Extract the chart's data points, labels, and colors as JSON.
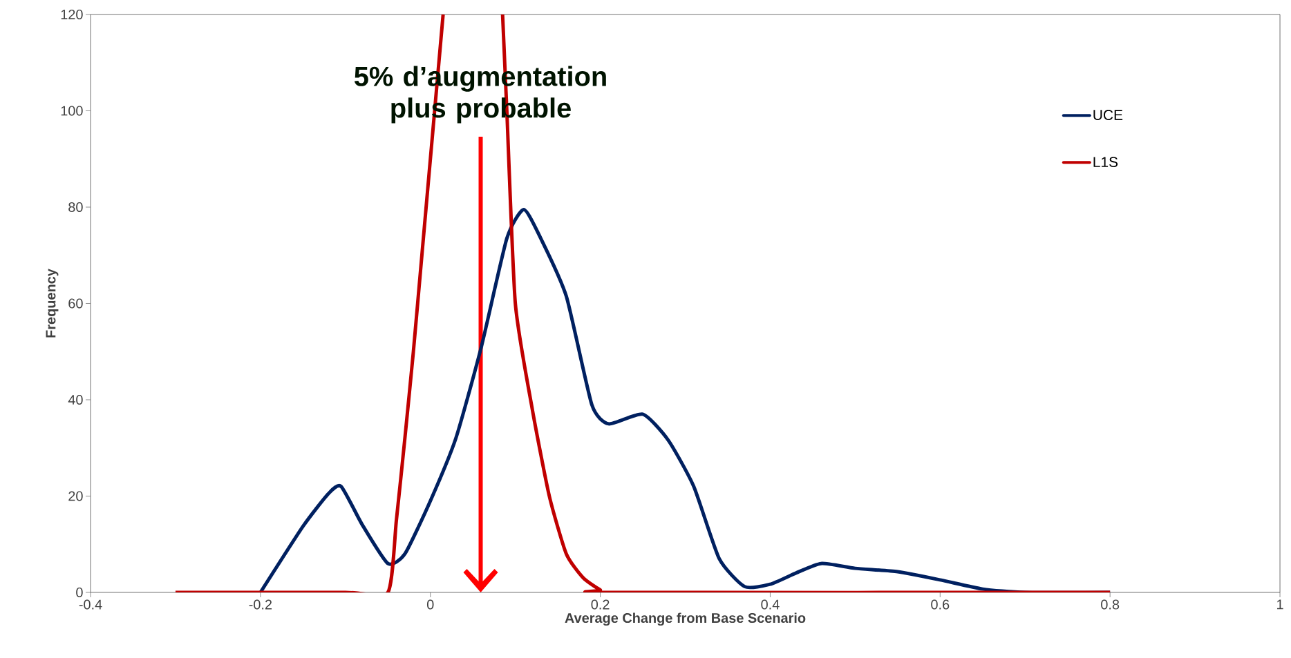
{
  "chart_data": {
    "type": "line",
    "xlabel": "Average Change from Base Scenario",
    "ylabel": "Frequency",
    "xlim": [
      -0.4,
      1
    ],
    "ylim": [
      0,
      120
    ],
    "xticks": [
      -0.4,
      -0.2,
      0,
      0.2,
      0.4,
      0.6,
      0.8,
      1
    ],
    "yticks": [
      0,
      20,
      40,
      60,
      80,
      100,
      120
    ],
    "grid": false,
    "legend": "top right",
    "line_style": "solid",
    "annotations": [
      "5% d’augmentation plus probable"
    ],
    "series": [
      {
        "name": "UCE",
        "color": "#002060",
        "x": [
          -0.2,
          -0.15,
          -0.12,
          -0.105,
          -0.08,
          -0.05,
          -0.03,
          0,
          0.03,
          0.06,
          0.09,
          0.11,
          0.13,
          0.16,
          0.19,
          0.21,
          0.25,
          0.28,
          0.31,
          0.34,
          0.37,
          0.4,
          0.43,
          0.46,
          0.5,
          0.55,
          0.6,
          0.65,
          0.7,
          0.8
        ],
        "values": [
          0,
          13.7,
          20.5,
          22,
          14,
          6,
          8,
          19,
          32,
          51,
          73.5,
          79.5,
          73.5,
          61.5,
          39,
          35,
          37,
          31.6,
          22,
          7,
          1.2,
          1.7,
          4,
          6,
          5,
          4.3,
          2.6,
          0.7,
          0,
          0
        ]
      },
      {
        "name": "L1S",
        "color": "#c00000",
        "x": [
          -0.3,
          -0.1,
          -0.05,
          -0.04,
          -0.03,
          -0.02,
          -0.01,
          0,
          0.015,
          0.05,
          0.085,
          0.09,
          0.1,
          0.12,
          0.14,
          0.16,
          0.18,
          0.2,
          0.21,
          0.8
        ],
        "values": [
          0,
          0,
          0,
          15,
          32,
          50,
          70,
          90,
          120,
          null,
          120,
          100,
          60,
          38,
          20,
          8,
          3,
          0.5,
          0,
          0
        ]
      }
    ]
  }
}
